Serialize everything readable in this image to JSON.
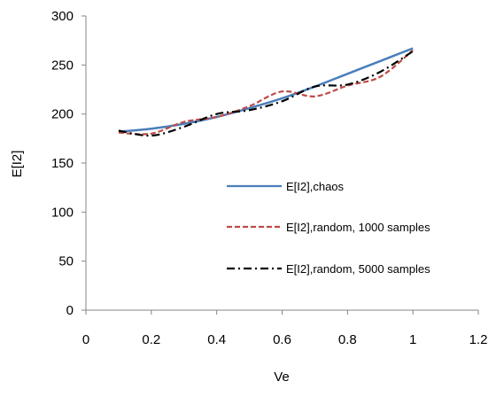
{
  "chart_data": {
    "type": "line",
    "title": "",
    "xlabel": "Ve",
    "ylabel": "E[I2]",
    "xlim": [
      0,
      1.2
    ],
    "ylim": [
      0,
      300
    ],
    "x_ticks": [
      "0",
      "0.2",
      "0.4",
      "0.6",
      "0.8",
      "1",
      "1.2"
    ],
    "y_ticks": [
      "0",
      "50",
      "100",
      "150",
      "200",
      "250",
      "300"
    ],
    "grid": false,
    "legend_position": "inside-right",
    "series": [
      {
        "name": "E[I2],chaos",
        "color": "#4a7ebb",
        "dash": "solid",
        "x": [
          0.1,
          0.2,
          0.3,
          0.4,
          0.5,
          0.6,
          0.7,
          0.8,
          0.9,
          1.0
        ],
        "y": [
          182,
          185,
          190,
          197,
          206,
          216,
          228,
          241,
          254,
          267
        ]
      },
      {
        "name": "E[I2],random, 1000 samples",
        "color": "#be4b48",
        "dash": "dashed",
        "x": [
          0.1,
          0.2,
          0.3,
          0.4,
          0.5,
          0.6,
          0.7,
          0.8,
          0.9,
          1.0
        ],
        "y": [
          181,
          180,
          192,
          197,
          208,
          223,
          218,
          229,
          238,
          265
        ]
      },
      {
        "name": "E[I2],random, 5000 samples",
        "color": "#000000",
        "dash": "dash-dot",
        "x": [
          0.1,
          0.2,
          0.3,
          0.4,
          0.5,
          0.6,
          0.7,
          0.8,
          0.9,
          1.0
        ],
        "y": [
          183,
          178,
          187,
          200,
          204,
          213,
          228,
          230,
          243,
          264
        ]
      }
    ]
  }
}
